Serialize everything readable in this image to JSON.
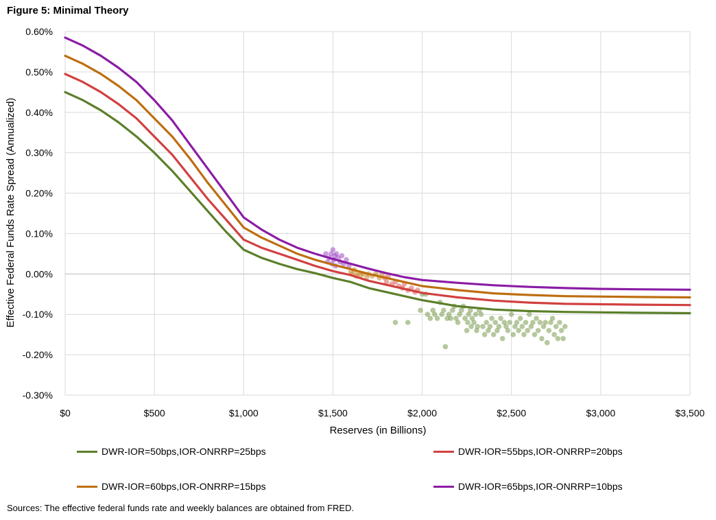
{
  "figure_title": "Figure 5: Minimal Theory",
  "sources": "Sources: The effective federal funds rate and weekly balances are obtained from FRED.",
  "chart_data": {
    "type": "line",
    "xlabel": "Reserves (in Billions)",
    "ylabel": "Effective Federal Funds Rate Spread (Annualized)",
    "xlim": [
      0,
      3500
    ],
    "ylim": [
      -0.3,
      0.6
    ],
    "x_ticks": [
      0,
      500,
      1000,
      1500,
      2000,
      2500,
      3000,
      3500
    ],
    "x_tick_labels": [
      "$0",
      "$500",
      "$1,000",
      "$1,500",
      "$2,000",
      "$2,500",
      "$3,000",
      "$3,500"
    ],
    "y_ticks": [
      -0.3,
      -0.2,
      -0.1,
      0.0,
      0.1,
      0.2,
      0.3,
      0.4,
      0.5,
      0.6
    ],
    "y_tick_labels": [
      "-0.30%",
      "-0.20%",
      "-0.10%",
      "0.00%",
      "0.10%",
      "0.20%",
      "0.30%",
      "0.40%",
      "0.50%",
      "0.60%"
    ],
    "grid": true,
    "legend_position": "bottom",
    "x": [
      0,
      100,
      200,
      300,
      400,
      500,
      600,
      700,
      800,
      900,
      1000,
      1100,
      1200,
      1300,
      1400,
      1500,
      1600,
      1700,
      1800,
      1900,
      2000,
      2200,
      2400,
      2600,
      2800,
      3000,
      3200,
      3500
    ],
    "series": [
      {
        "name": "DWR-IOR=50bps,IOR-ONRRP=25bps",
        "color": "#5b7f2a",
        "values": [
          0.45,
          0.43,
          0.405,
          0.375,
          0.34,
          0.3,
          0.255,
          0.205,
          0.155,
          0.105,
          0.06,
          0.04,
          0.025,
          0.012,
          0.002,
          -0.01,
          -0.02,
          -0.035,
          -0.045,
          -0.055,
          -0.065,
          -0.08,
          -0.088,
          -0.092,
          -0.094,
          -0.095,
          -0.096,
          -0.097
        ]
      },
      {
        "name": "DWR-IOR=55bps,IOR-ONRRP=20bps",
        "color": "#d24040",
        "values": [
          0.495,
          0.475,
          0.45,
          0.42,
          0.385,
          0.34,
          0.295,
          0.24,
          0.185,
          0.135,
          0.085,
          0.065,
          0.05,
          0.035,
          0.02,
          0.007,
          -0.003,
          -0.017,
          -0.027,
          -0.037,
          -0.047,
          -0.058,
          -0.066,
          -0.071,
          -0.074,
          -0.075,
          -0.076,
          -0.077
        ]
      },
      {
        "name": "DWR-IOR=60bps,IOR-ONRRP=15bps",
        "color": "#bd6e10",
        "values": [
          0.54,
          0.52,
          0.495,
          0.465,
          0.43,
          0.385,
          0.34,
          0.285,
          0.225,
          0.17,
          0.115,
          0.09,
          0.07,
          0.05,
          0.035,
          0.023,
          0.012,
          0.0,
          -0.01,
          -0.02,
          -0.03,
          -0.04,
          -0.048,
          -0.052,
          -0.055,
          -0.056,
          -0.057,
          -0.058
        ]
      },
      {
        "name": "DWR-IOR=65bps,IOR-ONRRP=10bps",
        "color": "#8b1ca4",
        "values": [
          0.585,
          0.565,
          0.54,
          0.51,
          0.475,
          0.43,
          0.38,
          0.32,
          0.26,
          0.2,
          0.14,
          0.11,
          0.085,
          0.065,
          0.05,
          0.037,
          0.025,
          0.013,
          0.002,
          -0.008,
          -0.015,
          -0.022,
          -0.028,
          -0.032,
          -0.035,
          -0.037,
          -0.038,
          -0.039
        ]
      }
    ],
    "scatter_groups": [
      {
        "color": "#a04cc2",
        "points": [
          [
            1460,
            0.05
          ],
          [
            1470,
            0.03
          ],
          [
            1480,
            0.04
          ],
          [
            1490,
            0.05
          ],
          [
            1495,
            0.025
          ],
          [
            1500,
            0.06
          ],
          [
            1505,
            0.035
          ],
          [
            1510,
            0.045
          ],
          [
            1515,
            0.02
          ],
          [
            1520,
            0.05
          ],
          [
            1530,
            0.04
          ],
          [
            1540,
            0.03
          ],
          [
            1550,
            0.045
          ],
          [
            1560,
            0.025
          ],
          [
            1575,
            0.035
          ],
          [
            1590,
            0.02
          ]
        ]
      },
      {
        "color": "#c98a2c",
        "points": [
          [
            1600,
            0.005
          ],
          [
            1610,
            0.0
          ],
          [
            1620,
            0.01
          ],
          [
            1630,
            -0.005
          ],
          [
            1640,
            0.002
          ],
          [
            1655,
            -0.003
          ],
          [
            1670,
            0.0
          ],
          [
            1690,
            -0.008
          ],
          [
            1700,
            0.0
          ],
          [
            1720,
            -0.005
          ],
          [
            1740,
            0.0
          ],
          [
            1760,
            -0.01
          ],
          [
            1775,
            0.0
          ]
        ]
      },
      {
        "color": "#d9605a",
        "points": [
          [
            1790,
            -0.01
          ],
          [
            1800,
            -0.02
          ],
          [
            1810,
            -0.005
          ],
          [
            1830,
            -0.025
          ],
          [
            1850,
            -0.02
          ],
          [
            1870,
            -0.03
          ],
          [
            1890,
            -0.035
          ],
          [
            1900,
            -0.025
          ],
          [
            1920,
            -0.04
          ],
          [
            1940,
            -0.035
          ],
          [
            1960,
            -0.045
          ],
          [
            1975,
            -0.04
          ]
        ]
      },
      {
        "color": "#7a9a4e",
        "points": [
          [
            1850,
            -0.12
          ],
          [
            1920,
            -0.12
          ],
          [
            1990,
            -0.09
          ],
          [
            2000,
            -0.05
          ],
          [
            2020,
            -0.05
          ],
          [
            2030,
            -0.1
          ],
          [
            2045,
            -0.11
          ],
          [
            2060,
            -0.09
          ],
          [
            2070,
            -0.1
          ],
          [
            2085,
            -0.11
          ],
          [
            2100,
            -0.07
          ],
          [
            2110,
            -0.1
          ],
          [
            2120,
            -0.09
          ],
          [
            2130,
            -0.18
          ],
          [
            2140,
            -0.11
          ],
          [
            2150,
            -0.1
          ],
          [
            2160,
            -0.11
          ],
          [
            2170,
            -0.09
          ],
          [
            2180,
            -0.08
          ],
          [
            2190,
            -0.11
          ],
          [
            2200,
            -0.12
          ],
          [
            2210,
            -0.1
          ],
          [
            2220,
            -0.09
          ],
          [
            2230,
            -0.08
          ],
          [
            2240,
            -0.11
          ],
          [
            2250,
            -0.14
          ],
          [
            2255,
            -0.12
          ],
          [
            2260,
            -0.1
          ],
          [
            2270,
            -0.09
          ],
          [
            2275,
            -0.13
          ],
          [
            2280,
            -0.11
          ],
          [
            2290,
            -0.12
          ],
          [
            2300,
            -0.1
          ],
          [
            2305,
            -0.14
          ],
          [
            2310,
            -0.13
          ],
          [
            2320,
            -0.09
          ],
          [
            2330,
            -0.1
          ],
          [
            2340,
            -0.13
          ],
          [
            2350,
            -0.15
          ],
          [
            2360,
            -0.12
          ],
          [
            2370,
            -0.14
          ],
          [
            2380,
            -0.13
          ],
          [
            2390,
            -0.11
          ],
          [
            2400,
            -0.15
          ],
          [
            2410,
            -0.12
          ],
          [
            2420,
            -0.14
          ],
          [
            2430,
            -0.13
          ],
          [
            2440,
            -0.11
          ],
          [
            2450,
            -0.16
          ],
          [
            2460,
            -0.12
          ],
          [
            2470,
            -0.13
          ],
          [
            2480,
            -0.14
          ],
          [
            2490,
            -0.12
          ],
          [
            2500,
            -0.1
          ],
          [
            2510,
            -0.15
          ],
          [
            2520,
            -0.13
          ],
          [
            2530,
            -0.12
          ],
          [
            2540,
            -0.14
          ],
          [
            2550,
            -0.11
          ],
          [
            2560,
            -0.13
          ],
          [
            2570,
            -0.15
          ],
          [
            2580,
            -0.12
          ],
          [
            2590,
            -0.14
          ],
          [
            2600,
            -0.1
          ],
          [
            2610,
            -0.13
          ],
          [
            2620,
            -0.12
          ],
          [
            2630,
            -0.15
          ],
          [
            2640,
            -0.11
          ],
          [
            2650,
            -0.14
          ],
          [
            2660,
            -0.12
          ],
          [
            2670,
            -0.16
          ],
          [
            2680,
            -0.13
          ],
          [
            2690,
            -0.12
          ],
          [
            2700,
            -0.17
          ],
          [
            2710,
            -0.14
          ],
          [
            2720,
            -0.12
          ],
          [
            2730,
            -0.11
          ],
          [
            2740,
            -0.15
          ],
          [
            2750,
            -0.13
          ],
          [
            2760,
            -0.16
          ],
          [
            2770,
            -0.12
          ],
          [
            2780,
            -0.14
          ],
          [
            2790,
            -0.16
          ],
          [
            2800,
            -0.13
          ]
        ]
      }
    ]
  },
  "colors": {
    "grid": "#d9d9d9",
    "axis": "#bfbfbf"
  }
}
